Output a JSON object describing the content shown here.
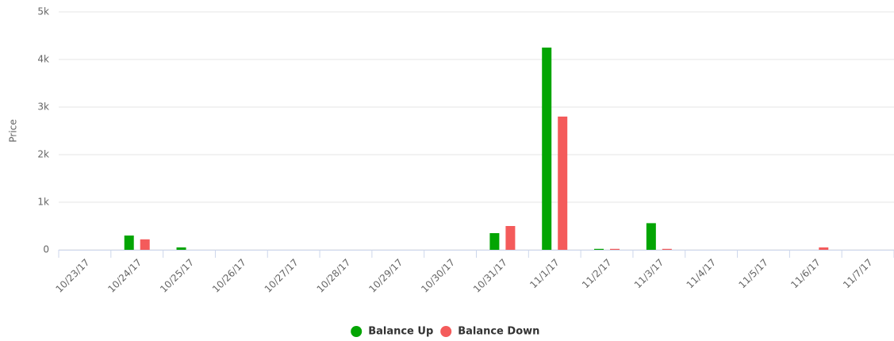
{
  "chart_data": {
    "type": "bar",
    "y_label": "Price",
    "categories": [
      "10/23/17",
      "10/24/17",
      "10/25/17",
      "10/26/17",
      "10/27/17",
      "10/28/17",
      "10/29/17",
      "10/30/17",
      "10/31/17",
      "11/1/17",
      "11/2/17",
      "11/3/17",
      "11/4/17",
      "11/5/17",
      "11/6/17",
      "11/7/17"
    ],
    "series": [
      {
        "name": "Balance Up",
        "color": "#03a503",
        "values": [
          0,
          300,
          50,
          0,
          0,
          0,
          0,
          0,
          350,
          4250,
          20,
          560,
          0,
          0,
          0,
          0
        ]
      },
      {
        "name": "Balance Down",
        "color": "#f45b5b",
        "values": [
          0,
          220,
          0,
          0,
          0,
          0,
          0,
          0,
          500,
          2800,
          20,
          20,
          0,
          0,
          50,
          0
        ]
      }
    ],
    "ylim": [
      0,
      5000
    ],
    "yticks": [
      0,
      {
        "value": 1000,
        "label": "1k"
      },
      {
        "value": 2000,
        "label": "2k"
      },
      {
        "value": 3000,
        "label": "3k"
      },
      {
        "value": 4000,
        "label": "4k"
      },
      {
        "value": 5000,
        "label": "5k"
      }
    ],
    "grid": true,
    "legend": "bottom"
  }
}
